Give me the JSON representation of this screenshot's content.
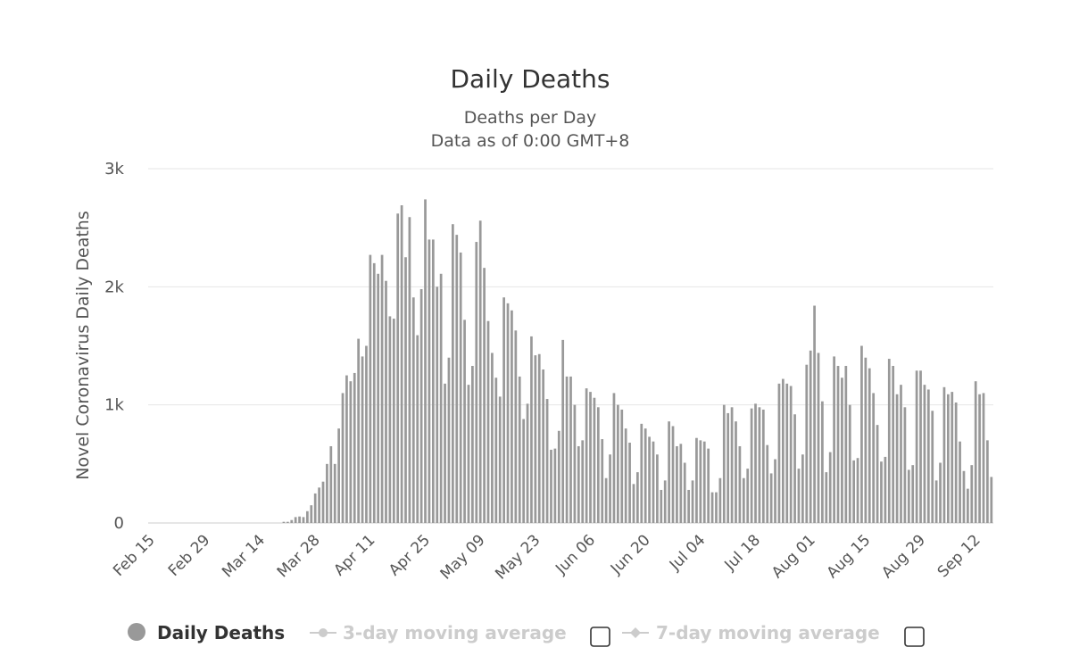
{
  "colors": {
    "bar": "#999999",
    "grid": "#e6e6e6",
    "legend_inactive": "#cccccc"
  },
  "legend": {
    "items": [
      {
        "label": "Daily Deaths",
        "active": true,
        "icon": "circle-marker"
      },
      {
        "label": "3-day moving average",
        "active": false,
        "icon": "line-circle-marker"
      },
      {
        "label": "7-day moving average",
        "active": false,
        "icon": "line-diamond-marker"
      }
    ]
  },
  "chart_data": {
    "type": "bar",
    "title": "Daily Deaths",
    "subtitle_lines": [
      "Deaths per Day",
      "Data as of 0:00 GMT+8"
    ],
    "xlabel": "",
    "ylabel": "Novel Coronavirus Daily Deaths",
    "ylim": [
      0,
      3000
    ],
    "yticks": [
      0,
      1000,
      2000,
      3000
    ],
    "ytick_labels": [
      "0",
      "1k",
      "2k",
      "3k"
    ],
    "xtick_labels": [
      "Feb 15",
      "Feb 29",
      "Mar 14",
      "Mar 28",
      "Apr 11",
      "Apr 25",
      "May 09",
      "May 23",
      "Jun 06",
      "Jun 20",
      "Jul 04",
      "Jul 18",
      "Aug 01",
      "Aug 15",
      "Aug 29",
      "Sep 12"
    ],
    "first_date": "Feb 15",
    "last_date": "Sep 12",
    "grid": true,
    "series": [
      {
        "name": "Daily Deaths",
        "values": [
          0,
          0,
          0,
          0,
          0,
          0,
          0,
          0,
          0,
          0,
          0,
          0,
          0,
          0,
          0,
          0,
          0,
          0,
          0,
          0,
          0,
          0,
          0,
          0,
          0,
          0,
          0,
          0,
          0,
          0,
          0,
          0,
          0,
          0,
          10,
          10,
          25,
          50,
          55,
          50,
          100,
          150,
          250,
          300,
          350,
          500,
          650,
          500,
          800,
          1100,
          1250,
          1200,
          1270,
          1560,
          1410,
          1500,
          2270,
          2200,
          2110,
          2270,
          2050,
          1750,
          1730,
          2620,
          2690,
          2250,
          2590,
          1910,
          1590,
          1980,
          2740,
          2400,
          2400,
          2000,
          2110,
          1180,
          1400,
          2530,
          2440,
          2290,
          1720,
          1170,
          1330,
          2380,
          2560,
          2160,
          1710,
          1440,
          1230,
          1070,
          1910,
          1860,
          1800,
          1630,
          1240,
          880,
          1010,
          1580,
          1420,
          1430,
          1300,
          1050,
          620,
          630,
          780,
          1550,
          1240,
          1240,
          1000,
          650,
          700,
          1140,
          1110,
          1060,
          980,
          710,
          380,
          580,
          1100,
          1000,
          960,
          800,
          680,
          330,
          430,
          840,
          800,
          730,
          690,
          580,
          280,
          360,
          860,
          820,
          650,
          670,
          510,
          280,
          360,
          720,
          700,
          690,
          630,
          260,
          260,
          380,
          1000,
          930,
          980,
          860,
          650,
          380,
          460,
          970,
          1010,
          980,
          960,
          660,
          420,
          540,
          1180,
          1220,
          1180,
          1160,
          920,
          460,
          580,
          1340,
          1460,
          1840,
          1440,
          1030,
          430,
          600,
          1410,
          1330,
          1230,
          1330,
          1000,
          530,
          550,
          1500,
          1400,
          1310,
          1100,
          830,
          520,
          560,
          1390,
          1330,
          1090,
          1170,
          980,
          450,
          490,
          1290,
          1290,
          1170,
          1130,
          950,
          360,
          510,
          1150,
          1090,
          1110,
          1020,
          690,
          440,
          290,
          490,
          1200,
          1090,
          1100,
          700,
          390
        ]
      }
    ]
  }
}
